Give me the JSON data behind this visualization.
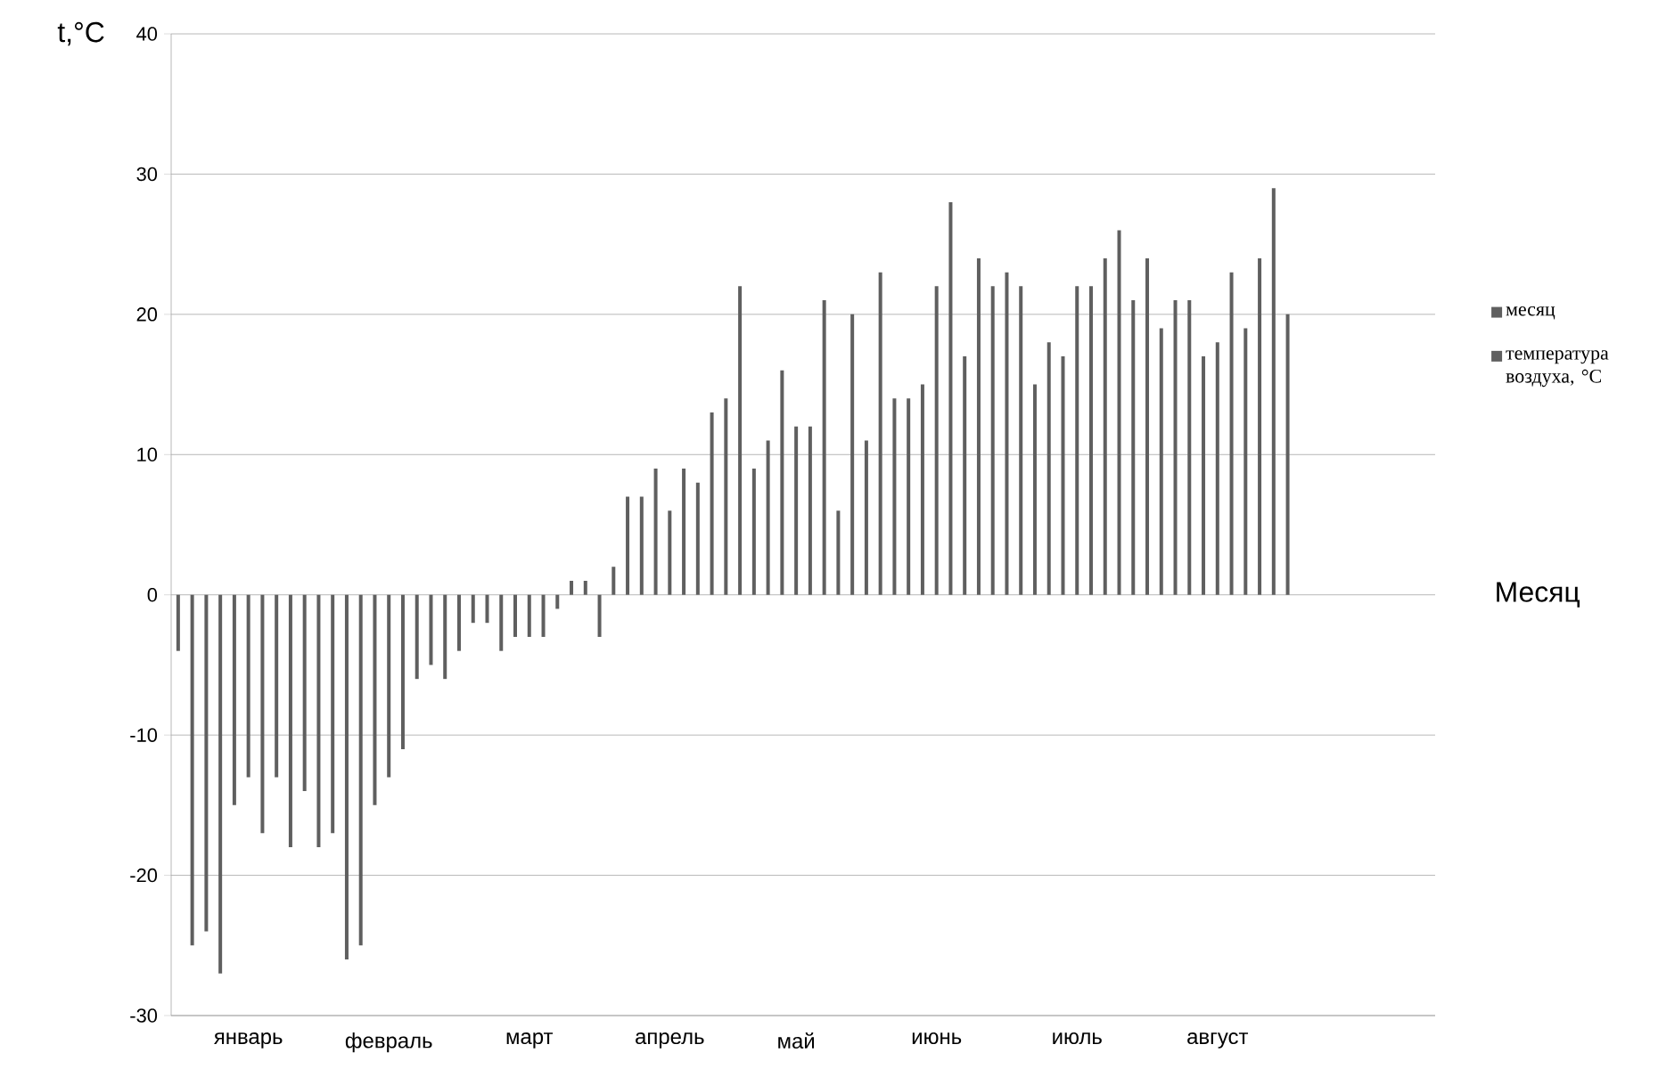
{
  "chart_data": {
    "type": "bar",
    "xlabel": "Месяц",
    "ylabel": "t,°C",
    "categories": [
      null,
      null,
      null,
      null,
      null,
      "январь",
      null,
      null,
      null,
      null,
      null,
      null,
      null,
      null,
      null,
      "февраль",
      null,
      null,
      null,
      null,
      null,
      null,
      null,
      null,
      null,
      "март",
      null,
      null,
      null,
      null,
      null,
      null,
      null,
      null,
      null,
      "апрель",
      null,
      null,
      null,
      null,
      null,
      null,
      null,
      null,
      "май",
      null,
      null,
      null,
      null,
      null,
      null,
      null,
      null,
      null,
      "июнь",
      null,
      null,
      null,
      null,
      null,
      null,
      null,
      null,
      null,
      "июль",
      null,
      null,
      null,
      null,
      null,
      null,
      null,
      null,
      null,
      "август",
      null,
      null,
      null,
      null,
      null,
      null,
      null,
      null,
      null,
      null,
      null,
      null,
      null,
      null,
      null
    ],
    "series": [
      {
        "name": "месяц",
        "color": "#5f5f5f",
        "values": [
          null,
          null,
          null,
          null,
          null,
          null,
          null,
          null,
          null,
          null,
          null,
          null,
          null,
          null,
          null,
          null,
          null,
          null,
          null,
          null,
          null,
          null,
          null,
          null,
          null,
          null,
          null,
          null,
          null,
          null,
          null,
          null,
          null,
          null,
          null,
          null,
          null,
          null,
          null,
          null,
          null,
          null,
          null,
          null,
          null,
          null,
          null,
          null,
          null,
          null,
          null,
          null,
          null,
          null,
          null,
          null,
          null,
          null,
          null,
          null,
          null,
          null,
          null,
          null,
          null,
          null,
          null,
          null,
          null,
          null,
          null,
          null,
          null,
          null,
          null,
          null,
          null,
          null,
          null,
          null,
          null,
          null,
          null,
          null,
          null,
          null,
          null,
          null,
          null,
          null
        ]
      },
      {
        "name": "температура воздуха, °C",
        "color": "#5f5f5f",
        "values": [
          -4,
          -25,
          -24,
          -27,
          -15,
          -13,
          -17,
          -13,
          -18,
          -14,
          -18,
          -17,
          -26,
          -25,
          -15,
          -13,
          -11,
          -6,
          -5,
          -6,
          -4,
          -2,
          -2,
          -4,
          -3,
          -3,
          -3,
          -1,
          1,
          1,
          -3,
          2,
          7,
          7,
          9,
          6,
          9,
          8,
          13,
          14,
          22,
          9,
          11,
          16,
          12,
          12,
          21,
          6,
          20,
          11,
          23,
          14,
          14,
          15,
          22,
          28,
          17,
          24,
          22,
          23,
          22,
          15,
          18,
          17,
          22,
          22,
          24,
          26,
          21,
          24,
          19,
          21,
          21,
          17,
          18,
          23,
          19,
          24,
          29,
          20,
          null,
          null,
          null,
          null,
          null,
          null,
          null,
          null,
          null,
          null
        ]
      }
    ],
    "ylim": [
      -30,
      40
    ],
    "yticks": [
      -30,
      -20,
      -10,
      0,
      10,
      20,
      30,
      40
    ],
    "grid": "y",
    "legend": "right"
  }
}
